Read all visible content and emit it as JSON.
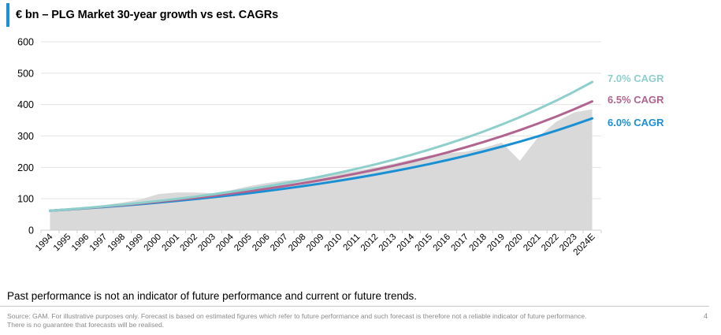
{
  "header": {
    "title": "€ bn – PLG Market 30-year growth vs est. CAGRs"
  },
  "chart_data": {
    "type": "area",
    "title": "€ bn – PLG Market 30-year growth vs est. CAGRs",
    "xlabel": "",
    "ylabel": "€ bn",
    "ylim": [
      0,
      600
    ],
    "yticks": [
      0,
      100,
      200,
      300,
      400,
      500,
      600
    ],
    "grid": true,
    "legend_position": "right",
    "categories": [
      "1994",
      "1995",
      "1996",
      "1997",
      "1998",
      "1999",
      "2000",
      "2001",
      "2002",
      "2003",
      "2004",
      "2005",
      "2006",
      "2007",
      "2008",
      "2009",
      "2010",
      "2011",
      "2012",
      "2013",
      "2014",
      "2015",
      "2016",
      "2017",
      "2018",
      "2019",
      "2020",
      "2021",
      "2022",
      "2023",
      "2024E"
    ],
    "series": [
      {
        "name": "PLG Market",
        "kind": "area",
        "color": "#d9d9d9",
        "values": [
          62,
          68,
          73,
          80,
          88,
          98,
          115,
          120,
          120,
          118,
          127,
          140,
          150,
          158,
          162,
          170,
          180,
          190,
          200,
          212,
          225,
          238,
          245,
          250,
          262,
          279,
          221,
          296,
          345,
          375,
          385
        ]
      },
      {
        "name": "7.0% CAGR",
        "kind": "line",
        "color": "#8ecfcc",
        "start": 62,
        "rate": 0.07
      },
      {
        "name": "6.5% CAGR",
        "kind": "line",
        "color": "#b0648f",
        "start": 62,
        "rate": 0.065
      },
      {
        "name": "6.0% CAGR",
        "kind": "line",
        "color": "#1a90d4",
        "start": 62,
        "rate": 0.06
      }
    ]
  },
  "footer": {
    "disclaimer": "Past performance is not an indicator of future performance and current or future trends.",
    "source_line1": "Source: GAM. For illustrative purposes only. Forecast is based on estimated figures which refer to future performance and such forecast is therefore not a reliable indicator of future performance.",
    "source_line2": "There is no guarantee that forecasts will be realised.",
    "page_number": "4"
  }
}
